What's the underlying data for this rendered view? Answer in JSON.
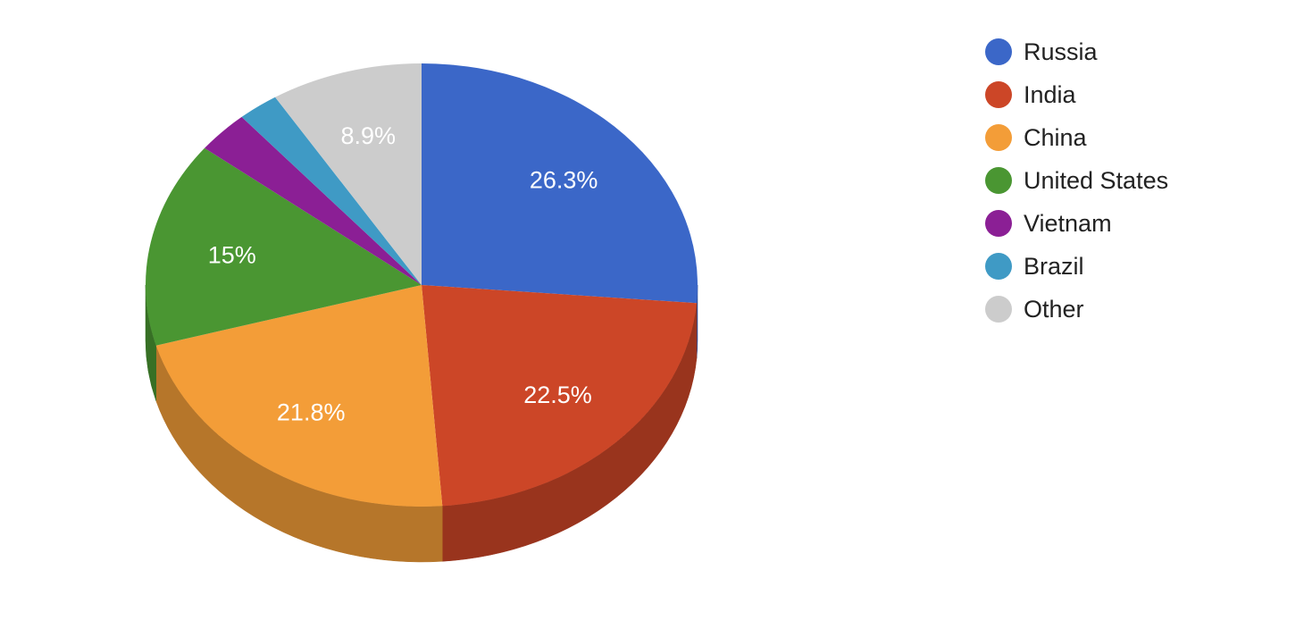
{
  "chart_data": {
    "type": "pie",
    "style": "3d",
    "legend_position": "right",
    "series": [
      {
        "name": "Russia",
        "value": 26.3,
        "label": "26.3%",
        "color": "#3b67c8",
        "side_color": "#2c4d96"
      },
      {
        "name": "India",
        "value": 22.5,
        "label": "22.5%",
        "color": "#cc4627",
        "side_color": "#99341d"
      },
      {
        "name": "China",
        "value": 21.8,
        "label": "21.8%",
        "color": "#f39d38",
        "side_color": "#b6762a"
      },
      {
        "name": "United States",
        "value": 15.0,
        "label": "15%",
        "color": "#4a9632",
        "side_color": "#377025"
      },
      {
        "name": "Vietnam",
        "value": 3.1,
        "label": "",
        "color": "#8b1f95",
        "side_color": "#681770"
      },
      {
        "name": "Brazil",
        "value": 2.4,
        "label": "",
        "color": "#3f9ac5",
        "side_color": "#2f7394"
      },
      {
        "name": "Other",
        "value": 8.9,
        "label": "8.9%",
        "color": "#cccccc",
        "side_color": "#999999"
      }
    ]
  }
}
